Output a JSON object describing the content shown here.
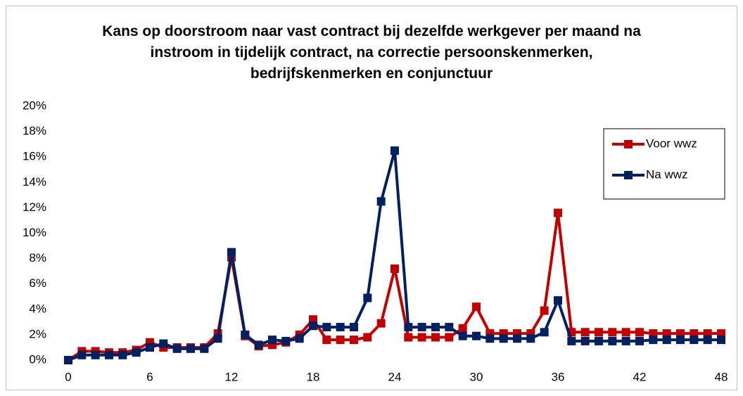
{
  "chart_data": {
    "type": "line",
    "title": "Kans op doorstroom naar vast contract bij dezelfde werkgever per maand na instroom in tijdelijk contract, na correctie persoonskenmerken, bedrijfskenmerken en conjunctuur",
    "x": [
      0,
      1,
      2,
      3,
      4,
      5,
      6,
      7,
      8,
      9,
      10,
      11,
      12,
      13,
      14,
      15,
      16,
      17,
      18,
      19,
      20,
      21,
      22,
      23,
      24,
      25,
      26,
      27,
      28,
      29,
      30,
      31,
      32,
      33,
      34,
      35,
      36,
      37,
      38,
      39,
      40,
      41,
      42,
      43,
      44,
      45,
      46,
      47,
      48
    ],
    "series": [
      {
        "name": "Voor wwz",
        "color": "#c00000",
        "values": [
          0,
          0.7,
          0.7,
          0.6,
          0.6,
          0.8,
          1.4,
          1.0,
          1.0,
          1.0,
          1.0,
          2.1,
          8.1,
          1.9,
          1.1,
          1.2,
          1.4,
          2.0,
          3.2,
          1.6,
          1.6,
          1.6,
          1.8,
          2.9,
          7.2,
          1.8,
          1.8,
          1.8,
          1.8,
          2.5,
          4.2,
          2.1,
          2.1,
          2.1,
          2.1,
          3.9,
          11.6,
          2.2,
          2.2,
          2.2,
          2.2,
          2.2,
          2.2,
          2.1,
          2.1,
          2.1,
          2.1,
          2.1,
          2.1
        ]
      },
      {
        "name": "Na wwz",
        "color": "#002060",
        "values": [
          0,
          0.4,
          0.4,
          0.4,
          0.4,
          0.6,
          1.0,
          1.3,
          0.9,
          0.9,
          0.9,
          1.7,
          8.5,
          2.0,
          1.2,
          1.6,
          1.5,
          1.7,
          2.7,
          2.6,
          2.6,
          2.6,
          4.9,
          12.5,
          16.5,
          2.6,
          2.6,
          2.6,
          2.6,
          1.9,
          1.9,
          1.7,
          1.7,
          1.7,
          1.7,
          2.2,
          4.7,
          1.5,
          1.5,
          1.5,
          1.5,
          1.5,
          1.5,
          1.6,
          1.6,
          1.6,
          1.6,
          1.6,
          1.6
        ]
      }
    ],
    "xlim": [
      0,
      48
    ],
    "xticks": [
      0,
      6,
      12,
      18,
      24,
      30,
      36,
      42,
      48
    ],
    "ylim": [
      0,
      20
    ],
    "yticks": [
      {
        "value": 0,
        "label": "0%"
      },
      {
        "value": 2,
        "label": "2%"
      },
      {
        "value": 4,
        "label": "4%"
      },
      {
        "value": 6,
        "label": "6%"
      },
      {
        "value": 8,
        "label": "8%"
      },
      {
        "value": 10,
        "label": "10%"
      },
      {
        "value": 12,
        "label": "12%"
      },
      {
        "value": 14,
        "label": "14%"
      },
      {
        "value": 16,
        "label": "16%"
      },
      {
        "value": 18,
        "label": "18%"
      },
      {
        "value": 20,
        "label": "20%"
      }
    ],
    "grid": false,
    "legend": "upper right"
  }
}
